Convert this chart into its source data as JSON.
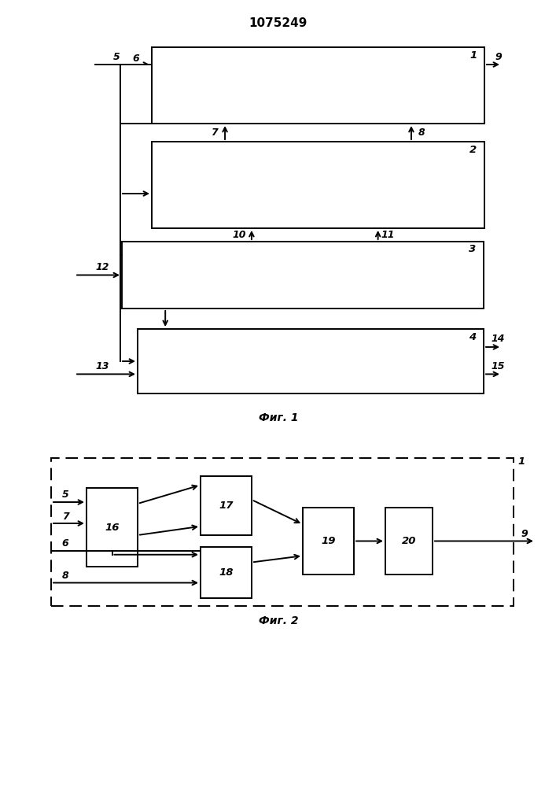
{
  "title": "1075249",
  "title_fontsize": 11,
  "fig1_label": "Фиг. 1",
  "fig2_label": "Фиг. 2",
  "background": "#ffffff"
}
